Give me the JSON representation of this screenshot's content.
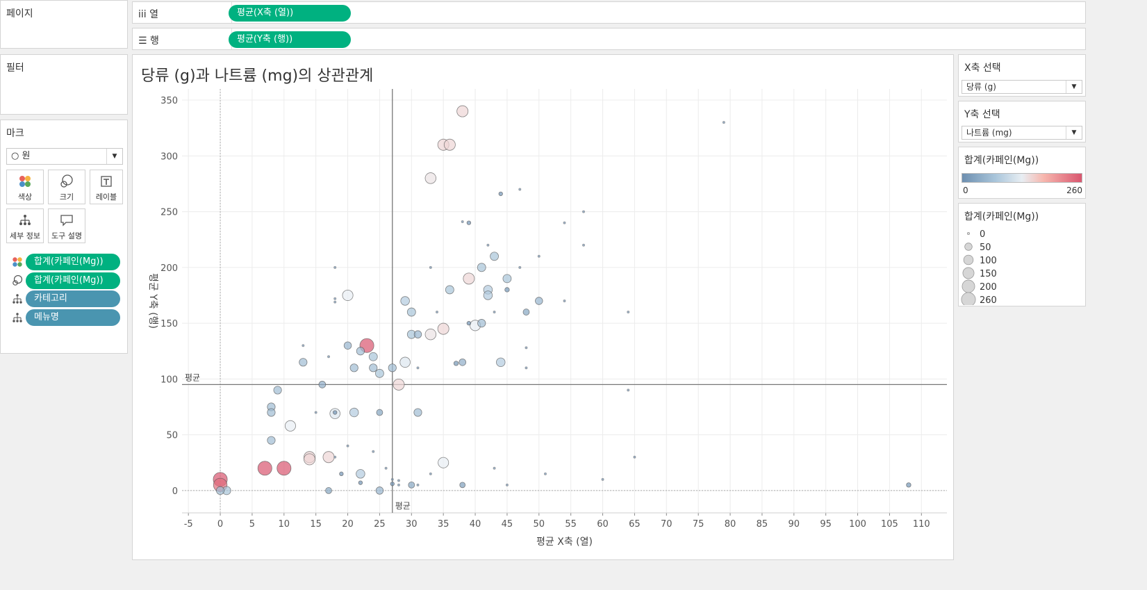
{
  "left_panel": {
    "pages_title": "페이지",
    "filters_title": "필터",
    "marks_title": "마크",
    "mark_type": "○ 원",
    "buttons": {
      "color": "색상",
      "size": "크기",
      "label": "레이블",
      "detail": "세부 정보",
      "tooltip": "도구 설명"
    },
    "mark_fields": [
      {
        "kind": "color",
        "label": "합계(카페인(Mg))",
        "style": "green"
      },
      {
        "kind": "size",
        "label": "합계(카페인(Mg))",
        "style": "green"
      },
      {
        "kind": "detail",
        "label": "카테고리",
        "style": "blue"
      },
      {
        "kind": "detail",
        "label": "메뉴명",
        "style": "blue"
      }
    ]
  },
  "shelves": {
    "columns_label": "iii  열",
    "columns_pill": "평균(X축 (열))",
    "rows_label": "☰  행",
    "rows_pill": "평균(Y축 (행))"
  },
  "worksheet": {
    "title": "당류 (g)과 나트륨 (mg)의 상관관계",
    "ref_line_x_label": "평균",
    "ref_line_y_label": "평균"
  },
  "right_panel": {
    "x_select_title": "X축 선택",
    "x_select_value": "당류 (g)",
    "y_select_title": "Y축 선택",
    "y_select_value": "나트륨 (mg)",
    "color_legend_title": "합계(카페인(Mg))",
    "color_legend_min": "0",
    "color_legend_max": "260",
    "size_legend_title": "합계(카페인(Mg))",
    "size_legend_items": [
      "0",
      "50",
      "100",
      "150",
      "200",
      "260"
    ]
  },
  "colors": {
    "accent_green": "#00b180",
    "accent_blue": "#4a95b0",
    "ramp_low": "#6d8fb0",
    "ramp_mid": "#e8eef3",
    "ramp_high": "#d9566f"
  },
  "chart_data": {
    "type": "scatter",
    "xlabel": "평균 X축 (열)",
    "ylabel": "평균 Y축 (행)",
    "xlim": [
      -6,
      114
    ],
    "ylim": [
      -20,
      360
    ],
    "xticks": [
      -5,
      0,
      5,
      10,
      15,
      20,
      25,
      30,
      35,
      40,
      45,
      50,
      55,
      60,
      65,
      70,
      75,
      80,
      85,
      90,
      95,
      100,
      105,
      110
    ],
    "yticks": [
      0,
      50,
      100,
      150,
      200,
      250,
      300,
      350
    ],
    "grid": true,
    "ref_lines": {
      "x_avg": 27,
      "y_avg": 95
    },
    "size_color_field": "합계(카페인(Mg))",
    "points": [
      {
        "x": 38,
        "y": 340,
        "c": 150
      },
      {
        "x": 35,
        "y": 310,
        "c": 150
      },
      {
        "x": 36,
        "y": 310,
        "c": 150
      },
      {
        "x": 33,
        "y": 280,
        "c": 140
      },
      {
        "x": 20,
        "y": 175,
        "c": 130
      },
      {
        "x": 39,
        "y": 190,
        "c": 150
      },
      {
        "x": 23,
        "y": 130,
        "c": 260
      },
      {
        "x": 22,
        "y": 125,
        "c": 60
      },
      {
        "x": 29,
        "y": 115,
        "c": 120
      },
      {
        "x": 28,
        "y": 95,
        "c": 150
      },
      {
        "x": 33,
        "y": 140,
        "c": 140
      },
      {
        "x": 35,
        "y": 145,
        "c": 150
      },
      {
        "x": 40,
        "y": 148,
        "c": 130
      },
      {
        "x": 18,
        "y": 69,
        "c": 120
      },
      {
        "x": 11,
        "y": 58,
        "c": 130
      },
      {
        "x": 14,
        "y": 30,
        "c": 150
      },
      {
        "x": 14,
        "y": 28,
        "c": 150
      },
      {
        "x": 17,
        "y": 30,
        "c": 150
      },
      {
        "x": 35,
        "y": 25,
        "c": 130
      },
      {
        "x": 7,
        "y": 20,
        "c": 260
      },
      {
        "x": 10,
        "y": 20,
        "c": 260
      },
      {
        "x": 0,
        "y": 10,
        "c": 260
      },
      {
        "x": 0,
        "y": 5,
        "c": 240
      },
      {
        "x": 0,
        "y": 0,
        "c": 60
      },
      {
        "x": 1,
        "y": 0,
        "c": 70
      },
      {
        "x": 41,
        "y": 200,
        "c": 70
      },
      {
        "x": 43,
        "y": 210,
        "c": 70
      },
      {
        "x": 45,
        "y": 190,
        "c": 70
      },
      {
        "x": 42,
        "y": 180,
        "c": 80
      },
      {
        "x": 42,
        "y": 175,
        "c": 80
      },
      {
        "x": 36,
        "y": 180,
        "c": 70
      },
      {
        "x": 29,
        "y": 170,
        "c": 80
      },
      {
        "x": 30,
        "y": 160,
        "c": 70
      },
      {
        "x": 30,
        "y": 140,
        "c": 70
      },
      {
        "x": 31,
        "y": 140,
        "c": 50
      },
      {
        "x": 41,
        "y": 150,
        "c": 60
      },
      {
        "x": 50,
        "y": 170,
        "c": 50
      },
      {
        "x": 48,
        "y": 160,
        "c": 30
      },
      {
        "x": 20,
        "y": 130,
        "c": 50
      },
      {
        "x": 24,
        "y": 120,
        "c": 70
      },
      {
        "x": 21,
        "y": 110,
        "c": 60
      },
      {
        "x": 24,
        "y": 110,
        "c": 60
      },
      {
        "x": 27,
        "y": 110,
        "c": 60
      },
      {
        "x": 25,
        "y": 105,
        "c": 70
      },
      {
        "x": 13,
        "y": 115,
        "c": 60
      },
      {
        "x": 44,
        "y": 115,
        "c": 80
      },
      {
        "x": 38,
        "y": 115,
        "c": 40
      },
      {
        "x": 16,
        "y": 95,
        "c": 40
      },
      {
        "x": 9,
        "y": 90,
        "c": 60
      },
      {
        "x": 8,
        "y": 75,
        "c": 60
      },
      {
        "x": 8,
        "y": 70,
        "c": 60
      },
      {
        "x": 21,
        "y": 70,
        "c": 80
      },
      {
        "x": 25,
        "y": 70,
        "c": 30
      },
      {
        "x": 31,
        "y": 70,
        "c": 60
      },
      {
        "x": 8,
        "y": 45,
        "c": 60
      },
      {
        "x": 22,
        "y": 15,
        "c": 80
      },
      {
        "x": 17,
        "y": 0,
        "c": 30
      },
      {
        "x": 25,
        "y": 0,
        "c": 50
      },
      {
        "x": 30,
        "y": 5,
        "c": 30
      },
      {
        "x": 38,
        "y": 5,
        "c": 20
      },
      {
        "x": 79,
        "y": 330,
        "c": 0
      },
      {
        "x": 47,
        "y": 270,
        "c": 0
      },
      {
        "x": 44,
        "y": 266,
        "c": 5
      },
      {
        "x": 57,
        "y": 250,
        "c": 0
      },
      {
        "x": 38,
        "y": 241,
        "c": 0
      },
      {
        "x": 39,
        "y": 240,
        "c": 5
      },
      {
        "x": 54,
        "y": 240,
        "c": 0
      },
      {
        "x": 42,
        "y": 220,
        "c": 0
      },
      {
        "x": 57,
        "y": 220,
        "c": 0
      },
      {
        "x": 50,
        "y": 210,
        "c": 0
      },
      {
        "x": 33,
        "y": 200,
        "c": 0
      },
      {
        "x": 47,
        "y": 200,
        "c": 0
      },
      {
        "x": 18,
        "y": 200,
        "c": 0
      },
      {
        "x": 18,
        "y": 172,
        "c": 0
      },
      {
        "x": 18,
        "y": 169,
        "c": 0
      },
      {
        "x": 54,
        "y": 170,
        "c": 0
      },
      {
        "x": 64,
        "y": 160,
        "c": 0
      },
      {
        "x": 34,
        "y": 160,
        "c": 0
      },
      {
        "x": 43,
        "y": 160,
        "c": 0
      },
      {
        "x": 39,
        "y": 150,
        "c": 5
      },
      {
        "x": 45,
        "y": 180,
        "c": 10
      },
      {
        "x": 48,
        "y": 128,
        "c": 0
      },
      {
        "x": 13,
        "y": 130,
        "c": 0
      },
      {
        "x": 17,
        "y": 120,
        "c": 0
      },
      {
        "x": 31,
        "y": 110,
        "c": 0
      },
      {
        "x": 37,
        "y": 114,
        "c": 10
      },
      {
        "x": 48,
        "y": 110,
        "c": 0
      },
      {
        "x": 64,
        "y": 90,
        "c": 0
      },
      {
        "x": 15,
        "y": 70,
        "c": 0
      },
      {
        "x": 18,
        "y": 70,
        "c": 5
      },
      {
        "x": 20,
        "y": 40,
        "c": 0
      },
      {
        "x": 24,
        "y": 35,
        "c": 0
      },
      {
        "x": 65,
        "y": 30,
        "c": 0
      },
      {
        "x": 18,
        "y": 30,
        "c": 0
      },
      {
        "x": 26,
        "y": 20,
        "c": 0
      },
      {
        "x": 43,
        "y": 20,
        "c": 0
      },
      {
        "x": 19,
        "y": 15,
        "c": 5
      },
      {
        "x": 33,
        "y": 15,
        "c": 0
      },
      {
        "x": 51,
        "y": 15,
        "c": 0
      },
      {
        "x": 27,
        "y": 10,
        "c": 0
      },
      {
        "x": 28,
        "y": 9,
        "c": 0
      },
      {
        "x": 60,
        "y": 10,
        "c": 0
      },
      {
        "x": 22,
        "y": 7,
        "c": 5
      },
      {
        "x": 27,
        "y": 6,
        "c": 5
      },
      {
        "x": 28,
        "y": 5,
        "c": 0
      },
      {
        "x": 31,
        "y": 5,
        "c": 0
      },
      {
        "x": 45,
        "y": 5,
        "c": 0
      },
      {
        "x": 108,
        "y": 5,
        "c": 10
      }
    ]
  }
}
